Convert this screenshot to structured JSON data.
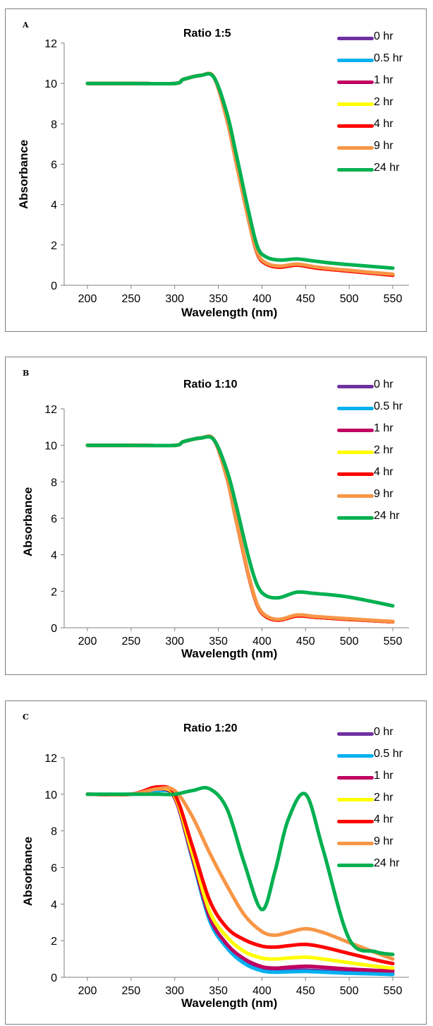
{
  "chart_data": [
    {
      "panel": "A",
      "type": "line",
      "title": "Ratio 1:5",
      "xlabel": "Wavelength (nm)",
      "ylabel": "Absorbance",
      "xlim": [
        200,
        550
      ],
      "ylim": [
        0,
        12
      ],
      "x_ticks": [
        200,
        250,
        300,
        350,
        400,
        450,
        500,
        550
      ],
      "y_ticks": [
        0,
        2,
        4,
        6,
        8,
        10,
        12
      ],
      "legend_position": "top-right",
      "x": [
        200,
        250,
        300,
        310,
        330,
        345,
        360,
        370,
        385,
        395,
        405,
        420,
        440,
        460,
        480,
        500,
        530,
        550
      ],
      "series": [
        {
          "name": "0 hr",
          "color": "#7030a0",
          "values": [
            10,
            10,
            10,
            10.2,
            10.4,
            10.3,
            8.2,
            6.2,
            3.2,
            1.55,
            1.05,
            0.9,
            1.0,
            0.87,
            0.78,
            0.7,
            0.58,
            0.5
          ]
        },
        {
          "name": "0.5 hr",
          "color": "#00b0f0",
          "values": [
            10,
            10,
            10,
            10.2,
            10.4,
            10.3,
            8.2,
            6.2,
            3.2,
            1.55,
            1.05,
            0.9,
            1.0,
            0.87,
            0.78,
            0.7,
            0.58,
            0.5
          ]
        },
        {
          "name": "1 hr",
          "color": "#c00060",
          "values": [
            10,
            10,
            10,
            10.2,
            10.4,
            10.3,
            8.2,
            6.2,
            3.2,
            1.55,
            1.05,
            0.9,
            1.0,
            0.87,
            0.78,
            0.7,
            0.58,
            0.5
          ]
        },
        {
          "name": "2 hr",
          "color": "#ffff00",
          "values": [
            10,
            10,
            10,
            10.2,
            10.4,
            10.3,
            8.2,
            6.2,
            3.2,
            1.55,
            1.05,
            0.9,
            1.0,
            0.87,
            0.78,
            0.7,
            0.58,
            0.5
          ]
        },
        {
          "name": "4 hr",
          "color": "#ff0000",
          "values": [
            10,
            10,
            10,
            10.2,
            10.4,
            10.3,
            8.2,
            6.2,
            3.2,
            1.55,
            1.05,
            0.9,
            1.0,
            0.87,
            0.78,
            0.7,
            0.58,
            0.5
          ]
        },
        {
          "name": "9 hr",
          "color": "#f79646",
          "values": [
            10,
            10,
            10,
            10.2,
            10.4,
            10.3,
            8.2,
            6.2,
            3.2,
            1.6,
            1.1,
            0.95,
            1.05,
            0.92,
            0.82,
            0.74,
            0.62,
            0.55
          ]
        },
        {
          "name": "24 hr",
          "color": "#00b050",
          "values": [
            10,
            10,
            10,
            10.2,
            10.4,
            10.3,
            8.5,
            6.6,
            3.6,
            1.9,
            1.4,
            1.25,
            1.3,
            1.2,
            1.1,
            1.02,
            0.92,
            0.85
          ]
        }
      ]
    },
    {
      "panel": "B",
      "type": "line",
      "title": "Ratio 1:10",
      "xlabel": "Wavelength (nm)",
      "ylabel": "Absorbance",
      "xlim": [
        200,
        550
      ],
      "ylim": [
        0,
        12
      ],
      "x_ticks": [
        200,
        250,
        300,
        350,
        400,
        450,
        500,
        550
      ],
      "y_ticks": [
        0,
        2,
        4,
        6,
        8,
        10,
        12
      ],
      "legend_position": "top-right",
      "x": [
        200,
        250,
        300,
        310,
        330,
        345,
        360,
        370,
        385,
        395,
        405,
        420,
        440,
        460,
        480,
        500,
        530,
        550
      ],
      "series": [
        {
          "name": "0 hr",
          "color": "#7030a0",
          "values": [
            10,
            10,
            10,
            10.2,
            10.4,
            10.3,
            8.2,
            6.0,
            2.8,
            1.2,
            0.6,
            0.42,
            0.65,
            0.58,
            0.52,
            0.46,
            0.38,
            0.33
          ]
        },
        {
          "name": "0.5 hr",
          "color": "#00b0f0",
          "values": [
            10,
            10,
            10,
            10.2,
            10.4,
            10.3,
            8.2,
            6.0,
            2.8,
            1.2,
            0.6,
            0.42,
            0.65,
            0.58,
            0.52,
            0.46,
            0.38,
            0.33
          ]
        },
        {
          "name": "1 hr",
          "color": "#c00060",
          "values": [
            10,
            10,
            10,
            10.2,
            10.4,
            10.3,
            8.2,
            6.0,
            2.8,
            1.2,
            0.6,
            0.42,
            0.65,
            0.58,
            0.52,
            0.46,
            0.38,
            0.33
          ]
        },
        {
          "name": "2 hr",
          "color": "#ffff00",
          "values": [
            10,
            10,
            10,
            10.2,
            10.4,
            10.3,
            8.2,
            6.0,
            2.8,
            1.2,
            0.6,
            0.42,
            0.65,
            0.58,
            0.52,
            0.46,
            0.38,
            0.33
          ]
        },
        {
          "name": "4 hr",
          "color": "#ff0000",
          "values": [
            10,
            10,
            10,
            10.2,
            10.4,
            10.3,
            8.2,
            6.0,
            2.8,
            1.2,
            0.6,
            0.42,
            0.65,
            0.58,
            0.52,
            0.46,
            0.38,
            0.33
          ]
        },
        {
          "name": "9 hr",
          "color": "#f79646",
          "values": [
            10,
            10,
            10,
            10.2,
            10.4,
            10.3,
            8.2,
            6.0,
            2.85,
            1.25,
            0.65,
            0.46,
            0.7,
            0.62,
            0.55,
            0.49,
            0.4,
            0.35
          ]
        },
        {
          "name": "24 hr",
          "color": "#00b050",
          "values": [
            10,
            10,
            10,
            10.2,
            10.4,
            10.3,
            8.6,
            6.8,
            3.8,
            2.3,
            1.75,
            1.65,
            1.95,
            1.88,
            1.8,
            1.68,
            1.4,
            1.2
          ]
        }
      ]
    },
    {
      "panel": "C",
      "type": "line",
      "title": "Ratio 1:20",
      "xlabel": "Wavelength (nm)",
      "ylabel": "Absorbance",
      "xlim": [
        200,
        550
      ],
      "ylim": [
        0,
        12
      ],
      "x_ticks": [
        200,
        250,
        300,
        350,
        400,
        450,
        500,
        550
      ],
      "y_ticks": [
        0,
        2,
        4,
        6,
        8,
        10,
        12
      ],
      "legend_position": "top-right",
      "x": [
        200,
        250,
        280,
        300,
        320,
        340,
        360,
        380,
        400,
        415,
        430,
        450,
        470,
        500,
        530,
        550
      ],
      "series": [
        {
          "name": "0 hr",
          "color": "#7030a0",
          "values": [
            10,
            10,
            10.2,
            9.8,
            6.5,
            3.2,
            1.7,
            0.85,
            0.45,
            0.35,
            0.38,
            0.4,
            0.35,
            0.28,
            0.22,
            0.2
          ]
        },
        {
          "name": "0.5 hr",
          "color": "#00b0f0",
          "values": [
            10,
            10,
            10.2,
            9.8,
            6.5,
            3.1,
            1.6,
            0.75,
            0.35,
            0.28,
            0.3,
            0.32,
            0.28,
            0.22,
            0.18,
            0.15
          ]
        },
        {
          "name": "1 hr",
          "color": "#c00060",
          "values": [
            10,
            10,
            10.3,
            9.8,
            6.6,
            3.3,
            1.8,
            1.0,
            0.58,
            0.5,
            0.55,
            0.6,
            0.55,
            0.45,
            0.38,
            0.35
          ]
        },
        {
          "name": "2 hr",
          "color": "#ffff00",
          "values": [
            10,
            10,
            10.3,
            9.9,
            6.8,
            3.6,
            2.2,
            1.4,
            1.05,
            1.0,
            1.05,
            1.1,
            1.0,
            0.8,
            0.6,
            0.5
          ]
        },
        {
          "name": "4 hr",
          "color": "#ff0000",
          "values": [
            10,
            10,
            10.4,
            10.0,
            7.2,
            4.2,
            2.7,
            2.05,
            1.7,
            1.65,
            1.72,
            1.8,
            1.65,
            1.3,
            0.95,
            0.75
          ]
        },
        {
          "name": "9 hr",
          "color": "#f79646",
          "values": [
            10,
            10,
            10.3,
            10.2,
            8.8,
            6.8,
            5.0,
            3.4,
            2.5,
            2.3,
            2.45,
            2.65,
            2.45,
            1.9,
            1.35,
            1.0
          ]
        },
        {
          "name": "24 hr",
          "color": "#00b050",
          "values": [
            10,
            10,
            10,
            10.0,
            10.2,
            10.3,
            9.2,
            6.2,
            3.7,
            5.8,
            8.6,
            10.0,
            7.0,
            2.1,
            1.4,
            1.25
          ]
        }
      ]
    }
  ]
}
